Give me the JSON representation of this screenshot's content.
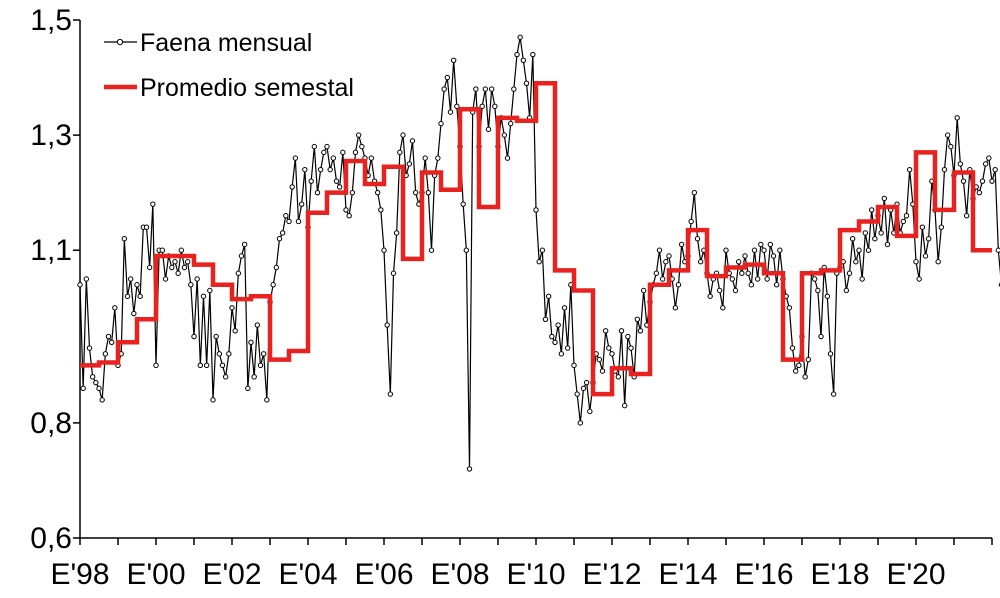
{
  "chart_data": {
    "type": "line",
    "title": "",
    "xlabel": "",
    "ylabel": "",
    "ylim": [
      0.6,
      1.5
    ],
    "yticks": [
      0.6,
      0.8,
      1.1,
      1.3,
      1.5
    ],
    "ytick_labels": [
      "0,6",
      "0,8",
      "1,1",
      "1,3",
      "1,5"
    ],
    "x_start_year": 1998,
    "xlim": [
      1998.0,
      2022.0
    ],
    "xtick_labels": [
      "E'98",
      "E'00",
      "E'02",
      "E'04",
      "E'06",
      "E'08",
      "E'10",
      "E'12",
      "E'14",
      "E'16",
      "E'18",
      "E'20"
    ],
    "xticks": [
      1998,
      2000,
      2002,
      2004,
      2006,
      2008,
      2010,
      2012,
      2014,
      2016,
      2018,
      2020
    ],
    "grid": false,
    "legend_position": "top-left",
    "series": [
      {
        "name": "Faena mensual",
        "color": "#000000",
        "style": "thin line with hollow circle markers",
        "values": [
          1.04,
          0.86,
          1.05,
          0.93,
          0.88,
          0.87,
          0.86,
          0.84,
          0.92,
          0.95,
          0.94,
          1.0,
          0.9,
          0.92,
          1.12,
          1.02,
          1.05,
          0.99,
          1.04,
          1.02,
          1.14,
          1.14,
          1.07,
          1.18,
          0.9,
          1.1,
          1.1,
          1.05,
          1.09,
          1.07,
          1.08,
          1.06,
          1.1,
          1.07,
          1.08,
          1.04,
          0.95,
          1.05,
          0.9,
          1.02,
          0.9,
          1.03,
          0.84,
          0.95,
          0.92,
          0.9,
          0.88,
          0.92,
          1.0,
          0.96,
          1.06,
          1.09,
          1.11,
          0.86,
          0.94,
          0.88,
          0.97,
          0.9,
          0.92,
          0.84,
          1.01,
          1.04,
          1.07,
          1.12,
          1.13,
          1.16,
          1.15,
          1.21,
          1.26,
          1.15,
          1.18,
          1.24,
          1.14,
          1.22,
          1.28,
          1.2,
          1.24,
          1.27,
          1.28,
          1.24,
          1.26,
          1.22,
          1.21,
          1.27,
          1.17,
          1.16,
          1.2,
          1.27,
          1.3,
          1.28,
          1.26,
          1.23,
          1.26,
          1.22,
          1.2,
          1.17,
          1.1,
          0.97,
          0.85,
          1.06,
          1.13,
          1.27,
          1.3,
          1.23,
          1.25,
          1.29,
          1.2,
          1.18,
          1.2,
          1.26,
          1.2,
          1.1,
          1.23,
          1.26,
          1.32,
          1.38,
          1.4,
          1.34,
          1.43,
          1.35,
          1.28,
          1.18,
          1.1,
          0.72,
          1.34,
          1.38,
          1.28,
          1.35,
          1.38,
          1.31,
          1.38,
          1.35,
          1.28,
          1.33,
          1.3,
          1.26,
          1.32,
          1.38,
          1.44,
          1.47,
          1.43,
          1.39,
          1.33,
          1.44,
          1.17,
          1.08,
          1.1,
          0.98,
          1.02,
          0.95,
          0.94,
          0.97,
          0.92,
          1.0,
          0.93,
          1.04,
          0.9,
          0.85,
          0.8,
          0.86,
          0.87,
          0.82,
          0.87,
          0.92,
          0.91,
          0.89,
          0.96,
          0.93,
          0.92,
          0.89,
          0.88,
          0.96,
          0.83,
          0.95,
          0.93,
          0.88,
          0.98,
          0.96,
          1.03,
          0.97,
          1.01,
          1.04,
          1.06,
          1.1,
          1.05,
          1.08,
          1.09,
          1.05,
          1.0,
          1.04,
          1.11,
          1.08,
          1.09,
          1.15,
          1.2,
          1.12,
          1.08,
          1.1,
          1.06,
          1.02,
          1.05,
          1.06,
          1.03,
          1.0,
          1.1,
          1.06,
          1.05,
          1.03,
          1.08,
          1.06,
          1.09,
          1.06,
          1.04,
          1.1,
          1.05,
          1.11,
          1.1,
          1.05,
          1.11,
          1.09,
          1.04,
          1.1,
          1.05,
          1.02,
          1.0,
          0.93,
          0.89,
          0.9,
          0.95,
          0.88,
          0.91,
          1.06,
          1.05,
          1.03,
          0.95,
          1.07,
          1.02,
          0.92,
          0.85,
          1.06,
          1.07,
          1.08,
          1.03,
          1.06,
          1.12,
          1.08,
          1.1,
          1.05,
          1.13,
          1.1,
          1.17,
          1.12,
          1.16,
          1.13,
          1.19,
          1.11,
          1.17,
          1.13,
          1.18,
          1.13,
          1.15,
          1.16,
          1.24,
          1.18,
          1.08,
          1.05,
          1.14,
          1.09,
          1.12,
          1.22,
          1.17,
          1.08,
          1.14,
          1.24,
          1.3,
          1.28,
          1.23,
          1.33,
          1.25,
          1.22,
          1.16,
          1.24,
          1.19,
          1.21,
          1.2,
          1.22,
          1.25,
          1.26,
          1.22,
          1.24,
          1.1,
          1.04,
          1.19,
          1.12
        ]
      },
      {
        "name": "Promedio semestal",
        "color": "#e8231f",
        "style": "thick step line (semester averages)",
        "values": [
          0.9,
          0.9,
          0.9,
          0.9,
          0.9,
          0.9,
          0.905,
          0.905,
          0.905,
          0.905,
          0.905,
          0.905,
          0.94,
          0.94,
          0.94,
          0.94,
          0.94,
          0.94,
          0.98,
          0.98,
          0.98,
          0.98,
          0.98,
          0.98,
          1.09,
          1.09,
          1.09,
          1.09,
          1.09,
          1.09,
          1.09,
          1.09,
          1.09,
          1.09,
          1.09,
          1.09,
          1.075,
          1.075,
          1.075,
          1.075,
          1.075,
          1.075,
          1.04,
          1.04,
          1.04,
          1.04,
          1.04,
          1.04,
          1.015,
          1.015,
          1.015,
          1.015,
          1.015,
          1.015,
          1.02,
          1.02,
          1.02,
          1.02,
          1.02,
          1.02,
          0.91,
          0.91,
          0.91,
          0.91,
          0.91,
          0.91,
          0.925,
          0.925,
          0.925,
          0.925,
          0.925,
          0.925,
          1.165,
          1.165,
          1.165,
          1.165,
          1.165,
          1.165,
          1.2,
          1.2,
          1.2,
          1.2,
          1.2,
          1.2,
          1.255,
          1.255,
          1.255,
          1.255,
          1.255,
          1.255,
          1.215,
          1.215,
          1.215,
          1.215,
          1.215,
          1.215,
          1.245,
          1.245,
          1.245,
          1.245,
          1.245,
          1.245,
          1.085,
          1.085,
          1.085,
          1.085,
          1.085,
          1.085,
          1.235,
          1.235,
          1.235,
          1.235,
          1.235,
          1.235,
          1.205,
          1.205,
          1.205,
          1.205,
          1.205,
          1.205,
          1.345,
          1.345,
          1.345,
          1.345,
          1.345,
          1.345,
          1.175,
          1.175,
          1.175,
          1.175,
          1.175,
          1.175,
          1.33,
          1.33,
          1.33,
          1.33,
          1.33,
          1.33,
          1.325,
          1.325,
          1.325,
          1.325,
          1.325,
          1.325,
          1.39,
          1.39,
          1.39,
          1.39,
          1.39,
          1.39,
          1.065,
          1.065,
          1.065,
          1.065,
          1.065,
          1.065,
          1.03,
          1.03,
          1.03,
          1.03,
          1.03,
          1.03,
          0.85,
          0.85,
          0.85,
          0.85,
          0.85,
          0.85,
          0.895,
          0.895,
          0.895,
          0.895,
          0.895,
          0.895,
          0.885,
          0.885,
          0.885,
          0.885,
          0.885,
          0.885,
          1.04,
          1.04,
          1.04,
          1.04,
          1.04,
          1.04,
          1.065,
          1.065,
          1.065,
          1.065,
          1.065,
          1.065,
          1.135,
          1.135,
          1.135,
          1.135,
          1.135,
          1.135,
          1.055,
          1.055,
          1.055,
          1.055,
          1.055,
          1.055,
          1.07,
          1.07,
          1.07,
          1.07,
          1.07,
          1.07,
          1.075,
          1.075,
          1.075,
          1.075,
          1.075,
          1.075,
          1.06,
          1.06,
          1.06,
          1.06,
          1.06,
          1.06,
          0.91,
          0.91,
          0.91,
          0.91,
          0.91,
          0.91,
          1.06,
          1.06,
          1.06,
          1.06,
          1.06,
          1.06,
          1.065,
          1.065,
          1.065,
          1.065,
          1.065,
          1.065,
          1.135,
          1.135,
          1.135,
          1.135,
          1.135,
          1.135,
          1.15,
          1.15,
          1.15,
          1.15,
          1.15,
          1.15,
          1.175,
          1.175,
          1.175,
          1.175,
          1.175,
          1.175,
          1.125,
          1.125,
          1.125,
          1.125,
          1.125,
          1.125,
          1.27,
          1.27,
          1.27,
          1.27,
          1.27,
          1.27,
          1.17,
          1.17,
          1.17,
          1.17,
          1.17,
          1.17,
          1.235,
          1.235,
          1.235,
          1.235,
          1.235,
          1.235,
          1.1,
          1.1,
          1.1,
          1.1,
          1.1,
          1.1
        ]
      }
    ]
  }
}
